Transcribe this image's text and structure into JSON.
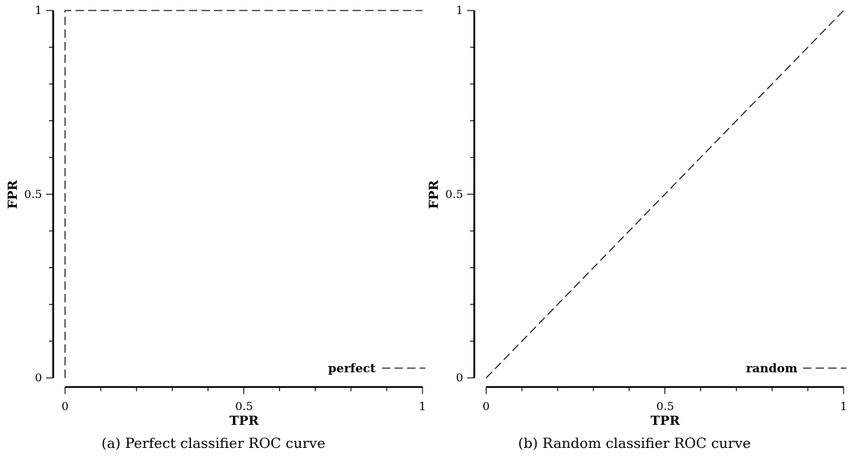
{
  "chart_data": [
    {
      "type": "line",
      "xlabel": "TPR",
      "ylabel": "FPR",
      "xlim": [
        0,
        1
      ],
      "ylim": [
        0,
        1
      ],
      "x_ticks": [
        "0",
        "0.5",
        "1"
      ],
      "y_ticks": [
        "0",
        "0.5",
        "1"
      ],
      "grid": false,
      "legend_position": "bottom-right",
      "caption": "(a) Perfect classifier ROC curve",
      "series": [
        {
          "name": "perfect",
          "style": "dashed",
          "x": [
            0,
            0,
            1
          ],
          "y": [
            0,
            1,
            1
          ]
        }
      ]
    },
    {
      "type": "line",
      "xlabel": "TPR",
      "ylabel": "FPR",
      "xlim": [
        0,
        1
      ],
      "ylim": [
        0,
        1
      ],
      "x_ticks": [
        "0",
        "0.5",
        "1"
      ],
      "y_ticks": [
        "0",
        "0.5",
        "1"
      ],
      "grid": false,
      "legend_position": "bottom-right",
      "caption": "(b) Random classifier ROC curve",
      "series": [
        {
          "name": "random",
          "style": "dashed",
          "x": [
            0,
            1
          ],
          "y": [
            0,
            1
          ]
        }
      ]
    }
  ],
  "colors": {
    "line": "#000000",
    "background": "#ffffff"
  }
}
